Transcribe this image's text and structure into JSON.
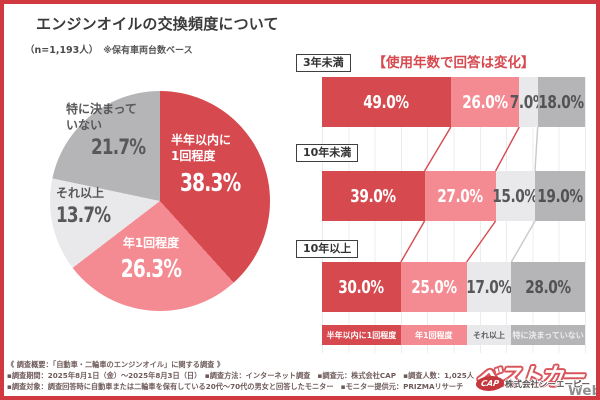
{
  "header": {
    "title": "エンジンオイルの交換頻度について",
    "sample": "（n=1,193人）",
    "note": "※保有車両台数ベース"
  },
  "colors": {
    "frame_border": "#d13940",
    "red": "#d6494f",
    "pink": "#f58b92",
    "light_gray": "#e9e9eb",
    "gray": "#b5b5b7"
  },
  "pie": {
    "slices": [
      {
        "line1": "半年以内に",
        "line2": "1回程度",
        "value": "38.3%"
      },
      {
        "line1": "年1回程度",
        "line2": "",
        "value": "26.3%"
      },
      {
        "line1": "それ以上",
        "line2": "",
        "value": "13.7%"
      },
      {
        "line1": "特に決まって",
        "line2": "いない",
        "value": "21.7%"
      }
    ]
  },
  "bar_section": {
    "title": "【使用年数で回答は変化】"
  },
  "chart_data": [
    {
      "type": "pie",
      "labels": [
        "半年以内に1回程度",
        "年1回程度",
        "それ以上",
        "特に決まっていない"
      ],
      "values": [
        38.3,
        26.3,
        13.7,
        21.7
      ],
      "unit": "%",
      "colors": [
        "#d6494f",
        "#f58b92",
        "#e9e9eb",
        "#b5b5b7"
      ],
      "start_angle_deg": 0,
      "direction": "clockwise"
    },
    {
      "type": "bar",
      "title": "【使用年数で回答は変化】",
      "orientation": "horizontal-stacked",
      "categories": [
        "3年未満",
        "10年未満",
        "10年以上"
      ],
      "series": [
        {
          "name": "半年以内に1回程度",
          "color": "#d6494f",
          "values": [
            49.0,
            39.0,
            30.0
          ]
        },
        {
          "name": "年1回程度",
          "color": "#f58b92",
          "values": [
            26.0,
            27.0,
            25.0
          ]
        },
        {
          "name": "それ以上",
          "color": "#e9e9eb",
          "values": [
            7.0,
            15.0,
            17.0
          ]
        },
        {
          "name": "特に決まっていない",
          "color": "#b5b5b7",
          "values": [
            18.0,
            19.0,
            28.0
          ]
        }
      ],
      "value_text_colors": [
        "#ffffff",
        "#ffffff",
        "#58585a",
        "#525254"
      ],
      "legend_text_colors": [
        "#ffffff",
        "#ffffff",
        "#5f5f60",
        "#ededee"
      ],
      "connector_colors": [
        "#d6494f",
        "#d6494f",
        "#c9c9cb"
      ],
      "xlim": [
        0,
        100
      ],
      "grid": true,
      "legend_position": "bottom"
    }
  ],
  "survey": {
    "heading": "《 調査概要：「自動車・二輪車のエンジンオイル」に関する調査 》",
    "line2": "▪調査期間：2025年8月1日（金）～2025年8月3日（日）　▪調査方法：インターネット調査　▪調査元：株式会社CAP　▪調査人数：1,025人",
    "line3": "▪調査対象：調査回答時に自動車または二輪車を保有している20代～70代の男女と回答したモニター　▪モニター提供元：PRIZMAリサーチ"
  },
  "logo": {
    "watermark": "ベストカー",
    "web": "Web",
    "badge": "CAP",
    "company": "株式会社シーエーピー"
  }
}
